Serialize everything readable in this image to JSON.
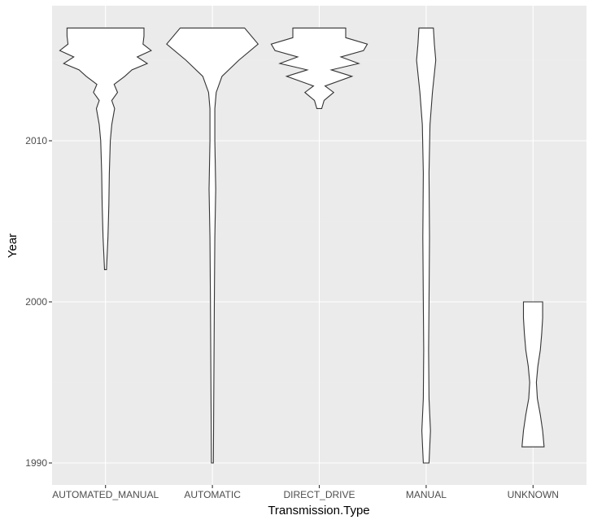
{
  "chart_data": {
    "type": "violin",
    "xlabel": "Transmission.Type",
    "ylabel": "Year",
    "ylim": [
      1989,
      2018
    ],
    "y_ticks": [
      1990,
      2000,
      2010
    ],
    "y_tick_labels": [
      "1990",
      "2000",
      "2010"
    ],
    "categories": [
      "AUTOMATED_MANUAL",
      "AUTOMATIC",
      "DIRECT_DRIVE",
      "MANUAL",
      "UNKNOWN"
    ],
    "grid": true,
    "legend": "none",
    "series": [
      {
        "category": "AUTOMATED_MANUAL",
        "min": 2002,
        "max": 2017,
        "density_profile": [
          [
            2002,
            0.02
          ],
          [
            2004,
            0.05
          ],
          [
            2006,
            0.07
          ],
          [
            2008,
            0.08
          ],
          [
            2010,
            0.1
          ],
          [
            2011,
            0.13
          ],
          [
            2012,
            0.19
          ],
          [
            2012.5,
            0.13
          ],
          [
            2013,
            0.25
          ],
          [
            2013.5,
            0.18
          ],
          [
            2014,
            0.4
          ],
          [
            2014.4,
            0.55
          ],
          [
            2014.8,
            0.87
          ],
          [
            2015.2,
            0.66
          ],
          [
            2015.6,
            0.95
          ],
          [
            2016,
            0.78
          ],
          [
            2016.5,
            0.8
          ],
          [
            2017,
            0.8
          ]
        ]
      },
      {
        "category": "AUTOMATIC",
        "min": 1990,
        "max": 2017,
        "density_profile": [
          [
            1990,
            0.02
          ],
          [
            1995,
            0.03
          ],
          [
            2000,
            0.04
          ],
          [
            2004,
            0.05
          ],
          [
            2007,
            0.07
          ],
          [
            2010,
            0.05
          ],
          [
            2012,
            0.05
          ],
          [
            2013,
            0.08
          ],
          [
            2014,
            0.2
          ],
          [
            2015,
            0.55
          ],
          [
            2016,
            0.95
          ],
          [
            2017,
            0.67
          ]
        ]
      },
      {
        "category": "DIRECT_DRIVE",
        "min": 2012,
        "max": 2017,
        "density_profile": [
          [
            2012,
            0.05
          ],
          [
            2012.5,
            0.1
          ],
          [
            2013,
            0.3
          ],
          [
            2013.4,
            0.12
          ],
          [
            2014,
            0.68
          ],
          [
            2014.4,
            0.25
          ],
          [
            2014.8,
            0.82
          ],
          [
            2015.2,
            0.45
          ],
          [
            2015.6,
            0.92
          ],
          [
            2016,
            1.0
          ],
          [
            2016.4,
            0.55
          ],
          [
            2017,
            0.55
          ]
        ]
      },
      {
        "category": "MANUAL",
        "min": 1990,
        "max": 2017,
        "density_profile": [
          [
            1990,
            0.06
          ],
          [
            1992,
            0.09
          ],
          [
            1994,
            0.06
          ],
          [
            1997,
            0.05
          ],
          [
            2000,
            0.06
          ],
          [
            2004,
            0.07
          ],
          [
            2008,
            0.06
          ],
          [
            2011,
            0.08
          ],
          [
            2013,
            0.13
          ],
          [
            2015,
            0.2
          ],
          [
            2016,
            0.17
          ],
          [
            2017,
            0.15
          ]
        ]
      },
      {
        "category": "UNKNOWN",
        "min": 1991,
        "max": 2000,
        "density_profile": [
          [
            1991,
            0.23
          ],
          [
            1992,
            0.2
          ],
          [
            1993,
            0.15
          ],
          [
            1994,
            0.09
          ],
          [
            1995,
            0.07
          ],
          [
            1996,
            0.1
          ],
          [
            1997,
            0.15
          ],
          [
            1998,
            0.18
          ],
          [
            1999,
            0.2
          ],
          [
            2000,
            0.2
          ]
        ]
      }
    ]
  }
}
